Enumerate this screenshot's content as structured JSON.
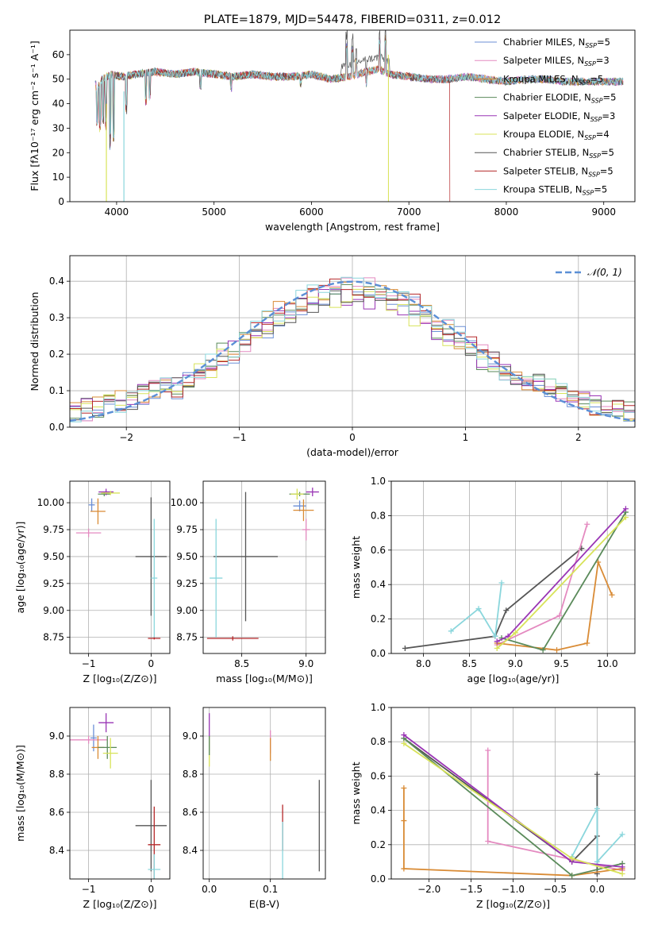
{
  "chart_data": [
    {
      "type": "line",
      "title": "PLATE=1879, MJD=54478, FIBERID=0311, z=0.012",
      "xlabel": "wavelength [Angstrom, rest frame]",
      "ylabel": "Flux [fλ10⁻¹⁷ erg cm⁻² s⁻¹ A⁻¹]",
      "xlim": [
        3520,
        9320
      ],
      "ylim": [
        0,
        70
      ],
      "xticks": [
        4000,
        5000,
        6000,
        7000,
        8000,
        9000
      ],
      "yticks": [
        0,
        10,
        20,
        30,
        40,
        50,
        60
      ],
      "grid": false,
      "legend_position": "top-right",
      "legend": [
        {
          "name": "Chabrier MILES, N",
          "sub": "SSP",
          "suffix": "=5",
          "color": "#6b8fd6"
        },
        {
          "name": "Salpeter MILES, N",
          "sub": "SSP",
          "suffix": "=3",
          "color": "#e48ac0"
        },
        {
          "name": "Kroupa MILES, N",
          "sub": "SSP",
          "suffix": "=5",
          "color": "#d98b35"
        },
        {
          "name": "Chabrier ELODIE, N",
          "sub": "SSP",
          "suffix": "=5",
          "color": "#5a8a5a"
        },
        {
          "name": "Salpeter ELODIE, N",
          "sub": "SSP",
          "suffix": "=3",
          "color": "#9a35b5"
        },
        {
          "name": "Kroupa ELODIE, N",
          "sub": "SSP",
          "suffix": "=4",
          "color": "#d8e35a"
        },
        {
          "name": "Chabrier STELIB, N",
          "sub": "SSP",
          "suffix": "=5",
          "color": "#555555"
        },
        {
          "name": "Salpeter STELIB, N",
          "sub": "SSP",
          "suffix": "=5",
          "color": "#b5282a"
        },
        {
          "name": "Kroupa STELIB, N",
          "sub": "SSP",
          "suffix": "=5",
          "color": "#8ad6dc"
        }
      ],
      "continuum": [
        [
          3790,
          45
        ],
        [
          3850,
          50
        ],
        [
          3950,
          52
        ],
        [
          4050,
          51
        ],
        [
          4200,
          52
        ],
        [
          4400,
          53
        ],
        [
          4600,
          52
        ],
        [
          4800,
          53
        ],
        [
          5000,
          52
        ],
        [
          5200,
          51
        ],
        [
          5400,
          52
        ],
        [
          5600,
          51
        ],
        [
          5800,
          51
        ],
        [
          6000,
          52
        ],
        [
          6200,
          50
        ],
        [
          6400,
          51
        ],
        [
          6550,
          53
        ],
        [
          6700,
          54
        ],
        [
          6800,
          52
        ],
        [
          7000,
          51
        ],
        [
          7200,
          50
        ],
        [
          7400,
          50
        ],
        [
          7600,
          51
        ],
        [
          7800,
          50
        ],
        [
          8000,
          49
        ],
        [
          8200,
          50
        ],
        [
          8400,
          50
        ],
        [
          8600,
          49
        ],
        [
          8800,
          49
        ],
        [
          9000,
          49
        ],
        [
          9200,
          49
        ]
      ],
      "features": [
        [
          3800,
          -15
        ],
        [
          3830,
          -20
        ],
        [
          3860,
          -18
        ],
        [
          3890,
          -22
        ],
        [
          3935,
          -30
        ],
        [
          3970,
          -28
        ],
        [
          4100,
          -15
        ],
        [
          4300,
          -12
        ],
        [
          4340,
          -10
        ],
        [
          4860,
          -6
        ],
        [
          5175,
          -5
        ],
        [
          5890,
          -4
        ],
        [
          6360,
          14
        ],
        [
          6420,
          12
        ],
        [
          6460,
          6
        ],
        [
          6563,
          -5
        ],
        [
          6700,
          12
        ],
        [
          6760,
          14
        ]
      ]
    },
    {
      "type": "step",
      "xlabel": "(data-model)/error",
      "ylabel": "Normed distribution",
      "xlim": [
        -2.5,
        2.5
      ],
      "ylim": [
        0,
        0.47
      ],
      "xticks": [
        -2,
        -1,
        0,
        1,
        2
      ],
      "yticks": [
        0,
        0.1,
        0.2,
        0.3,
        0.4
      ],
      "grid": true,
      "legend_position": "top-right",
      "gaussian_label": "𝒩(0, 1)",
      "gaussian": {
        "mean": 0,
        "sigma": 1,
        "color": "#5b8fd6"
      },
      "bin_edges": [
        -2.5,
        2.5,
        50
      ]
    },
    {
      "type": "errorbar",
      "xlabel": "Z [log₁₀(Z/Z⊙)]",
      "ylabel": "age [log₁₀(age/yr)]",
      "xlim": [
        -1.3,
        0.3
      ],
      "ylim": [
        8.6,
        10.2
      ],
      "xticks": [
        -1,
        0
      ],
      "yticks": [
        8.75,
        9.0,
        9.25,
        9.5,
        9.75,
        10.0
      ],
      "grid": true,
      "points": [
        {
          "x": -0.95,
          "y": 9.98,
          "xerr": 0.05,
          "yerr": 0.06,
          "color": "#6b8fd6"
        },
        {
          "x": -1.0,
          "y": 9.72,
          "xerr": 0.2,
          "yerr": 0.04,
          "color": "#e48ac0"
        },
        {
          "x": -0.85,
          "y": 9.92,
          "xerr": 0.12,
          "yerr": 0.12,
          "color": "#d98b35"
        },
        {
          "x": -0.75,
          "y": 10.08,
          "xerr": 0.1,
          "yerr": 0.02,
          "color": "#5a8a5a"
        },
        {
          "x": -0.72,
          "y": 10.1,
          "xerr": 0.12,
          "yerr": 0.03,
          "color": "#9a35b5"
        },
        {
          "x": -0.65,
          "y": 10.09,
          "xerr": 0.15,
          "yerr": 0.02,
          "color": "#d8e35a"
        },
        {
          "x": 0.0,
          "y": 9.5,
          "xerr": 0.25,
          "yerr": 0.55,
          "color": "#555555"
        },
        {
          "x": 0.05,
          "y": 8.74,
          "xerr": 0.1,
          "yerr": 0.01,
          "color": "#b5282a"
        },
        {
          "x": 0.05,
          "y": 9.3,
          "xerr": 0.05,
          "yerr": 0.55,
          "color": "#8ad6dc"
        }
      ]
    },
    {
      "type": "errorbar",
      "xlabel": "mass [log₁₀(M/M⊙)]",
      "ylabel": "",
      "xlim": [
        8.2,
        9.15
      ],
      "ylim": [
        8.6,
        10.2
      ],
      "xticks": [
        8.5,
        9.0
      ],
      "yticks": [
        8.75,
        9.0,
        9.25,
        9.5,
        9.75,
        10.0
      ],
      "grid": true,
      "points": [
        {
          "x": 8.95,
          "y": 9.97,
          "xerr": 0.05,
          "yerr": 0.05,
          "color": "#6b8fd6"
        },
        {
          "x": 9.0,
          "y": 9.75,
          "xerr": 0.03,
          "yerr": 0.1,
          "color": "#e48ac0"
        },
        {
          "x": 8.98,
          "y": 9.93,
          "xerr": 0.08,
          "yerr": 0.1,
          "color": "#d98b35"
        },
        {
          "x": 8.95,
          "y": 10.08,
          "xerr": 0.08,
          "yerr": 0.02,
          "color": "#5a8a5a"
        },
        {
          "x": 9.05,
          "y": 10.1,
          "xerr": 0.05,
          "yerr": 0.04,
          "color": "#9a35b5"
        },
        {
          "x": 8.93,
          "y": 10.08,
          "xerr": 0.05,
          "yerr": 0.05,
          "color": "#d8e35a"
        },
        {
          "x": 8.53,
          "y": 9.5,
          "xerr": 0.25,
          "yerr": 0.6,
          "color": "#555555"
        },
        {
          "x": 8.43,
          "y": 8.74,
          "xerr": 0.2,
          "yerr": 0.02,
          "color": "#b5282a"
        },
        {
          "x": 8.3,
          "y": 9.3,
          "xerr": 0.05,
          "yerr": 0.55,
          "color": "#8ad6dc"
        }
      ]
    },
    {
      "type": "line",
      "xlabel": "age  [log₁₀(age/yr)]",
      "ylabel": "mass weight",
      "xlim": [
        7.65,
        10.3
      ],
      "ylim": [
        0,
        1
      ],
      "xticks": [
        8.0,
        8.5,
        9.0,
        9.5,
        10.0
      ],
      "yticks": [
        0,
        0.2,
        0.4,
        0.6,
        0.8,
        1.0
      ],
      "grid": true,
      "series": [
        {
          "color": "#555555",
          "x": [
            7.8,
            8.78,
            8.9,
            9.72
          ],
          "y": [
            0.03,
            0.1,
            0.25,
            0.61
          ]
        },
        {
          "color": "#8ad6dc",
          "x": [
            8.3,
            8.6,
            8.78,
            8.85
          ],
          "y": [
            0.13,
            0.26,
            0.1,
            0.41
          ]
        },
        {
          "color": "#e48ac0",
          "x": [
            8.8,
            9.48,
            9.78
          ],
          "y": [
            0.05,
            0.22,
            0.75
          ]
        },
        {
          "color": "#d98b35",
          "x": [
            8.8,
            9.45,
            9.78,
            9.9,
            10.05
          ],
          "y": [
            0.06,
            0.02,
            0.06,
            0.53,
            0.34
          ]
        },
        {
          "color": "#5a8a5a",
          "x": [
            8.85,
            9.3,
            10.2
          ],
          "y": [
            0.09,
            0.02,
            0.82
          ]
        },
        {
          "color": "#9a35b5",
          "x": [
            8.8,
            8.92,
            10.2
          ],
          "y": [
            0.07,
            0.1,
            0.84
          ]
        },
        {
          "color": "#d8e35a",
          "x": [
            8.8,
            9.0,
            10.2
          ],
          "y": [
            0.03,
            0.12,
            0.79
          ]
        }
      ]
    },
    {
      "type": "errorbar",
      "xlabel": "Z [log₁₀(Z/Z⊙)]",
      "ylabel": "mass [log₁₀(M/M⊙)]",
      "xlim": [
        -1.3,
        0.3
      ],
      "ylim": [
        8.25,
        9.15
      ],
      "xticks": [
        -1,
        0
      ],
      "yticks": [
        8.4,
        8.6,
        8.8,
        9.0
      ],
      "grid": true,
      "points": [
        {
          "x": -0.92,
          "y": 8.99,
          "xerr": 0.05,
          "yerr": 0.07,
          "color": "#6b8fd6"
        },
        {
          "x": -1.0,
          "y": 8.98,
          "xerr": 0.3,
          "yerr": 0.02,
          "color": "#e48ac0"
        },
        {
          "x": -0.85,
          "y": 8.94,
          "xerr": 0.1,
          "yerr": 0.06,
          "color": "#d98b35"
        },
        {
          "x": -0.7,
          "y": 8.94,
          "xerr": 0.15,
          "yerr": 0.06,
          "color": "#5a8a5a"
        },
        {
          "x": -0.72,
          "y": 9.07,
          "xerr": 0.12,
          "yerr": 0.05,
          "color": "#9a35b5"
        },
        {
          "x": -0.65,
          "y": 8.91,
          "xerr": 0.12,
          "yerr": 0.08,
          "color": "#d8e35a"
        },
        {
          "x": 0.0,
          "y": 8.53,
          "xerr": 0.25,
          "yerr": 0.24,
          "color": "#555555"
        },
        {
          "x": 0.05,
          "y": 8.43,
          "xerr": 0.1,
          "yerr": 0.2,
          "color": "#b5282a"
        },
        {
          "x": 0.05,
          "y": 8.3,
          "xerr": 0.1,
          "yerr": 0.08,
          "color": "#8ad6dc"
        }
      ]
    },
    {
      "type": "errorbar",
      "xlabel": "E(B-V)",
      "ylabel": "",
      "xlim": [
        -0.01,
        0.19
      ],
      "ylim": [
        8.25,
        9.15
      ],
      "xticks": [
        0.0,
        0.1
      ],
      "yticks": [
        8.4,
        8.6,
        8.8,
        9.0
      ],
      "grid": true,
      "points": [
        {
          "x": 0.0,
          "y": 9.02,
          "xerr": 0,
          "yerr": 0.1,
          "color": "#9a35b5"
        },
        {
          "x": 0.0,
          "y": 8.92,
          "xerr": 0,
          "yerr": 0.08,
          "color": "#d8e35a"
        },
        {
          "x": 0.0,
          "y": 8.95,
          "xerr": 0,
          "yerr": 0.05,
          "color": "#5a8a5a"
        },
        {
          "x": 0.1,
          "y": 8.97,
          "xerr": 0,
          "yerr": 0.06,
          "color": "#e48ac0"
        },
        {
          "x": 0.1,
          "y": 8.93,
          "xerr": 0,
          "yerr": 0.06,
          "color": "#d98b35"
        },
        {
          "x": 0.12,
          "y": 8.52,
          "xerr": 0,
          "yerr": 0.12,
          "color": "#b5282a"
        },
        {
          "x": 0.12,
          "y": 8.4,
          "xerr": 0,
          "yerr": 0.15,
          "color": "#8ad6dc"
        },
        {
          "x": 0.18,
          "y": 8.53,
          "xerr": 0,
          "yerr": 0.24,
          "color": "#555555"
        }
      ]
    },
    {
      "type": "line",
      "xlabel": "Z [log₁₀(Z/Z⊙)]",
      "ylabel": "mass weight",
      "xlim": [
        -2.45,
        0.45
      ],
      "ylim": [
        0,
        1
      ],
      "xticks": [
        -2.0,
        -1.5,
        -1.0,
        -0.5,
        0.0
      ],
      "yticks": [
        0,
        0.2,
        0.4,
        0.6,
        0.8,
        1.0
      ],
      "grid": true,
      "series": [
        {
          "color": "#555555",
          "x": [
            -2.3,
            -0.3,
            0.0,
            0.0,
            0.0
          ],
          "y": [
            0.82,
            0.1,
            0.25,
            0.61,
            0.03
          ]
        },
        {
          "color": "#8ad6dc",
          "x": [
            -0.3,
            0.0,
            0.0,
            0.3
          ],
          "y": [
            0.13,
            0.41,
            0.1,
            0.26
          ]
        },
        {
          "color": "#e48ac0",
          "x": [
            -1.3,
            -1.3,
            0.3
          ],
          "y": [
            0.75,
            0.22,
            0.05
          ]
        },
        {
          "color": "#d98b35",
          "x": [
            -2.3,
            -2.3,
            -2.3,
            -0.3,
            0.3
          ],
          "y": [
            0.53,
            0.34,
            0.06,
            0.02,
            0.06
          ]
        },
        {
          "color": "#5a8a5a",
          "x": [
            -2.3,
            -0.3,
            0.3
          ],
          "y": [
            0.82,
            0.02,
            0.09
          ]
        },
        {
          "color": "#9a35b5",
          "x": [
            -2.3,
            -0.3,
            0.3
          ],
          "y": [
            0.84,
            0.1,
            0.07
          ]
        },
        {
          "color": "#d8e35a",
          "x": [
            -2.3,
            -0.3,
            0.3
          ],
          "y": [
            0.79,
            0.12,
            0.03
          ]
        }
      ]
    }
  ]
}
